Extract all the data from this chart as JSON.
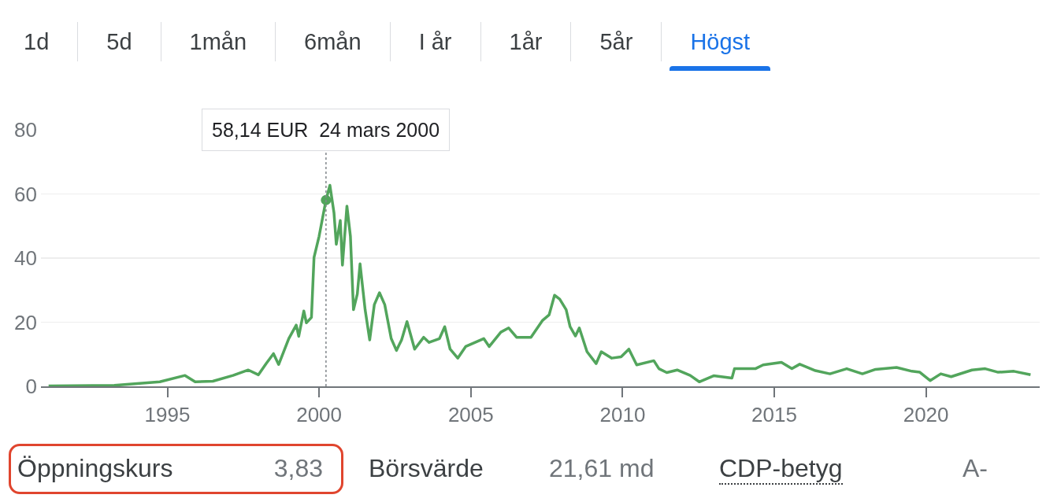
{
  "chart_data": {
    "type": "line",
    "x": [
      "1991-02",
      "1993-04",
      "1994-10",
      "1995-08",
      "1995-12",
      "1996-07",
      "1997-03",
      "1997-09",
      "1998-01",
      "1998-04",
      "1998-07",
      "1998-09",
      "1999-01",
      "1999-04",
      "1999-05",
      "1999-07",
      "1999-08",
      "1999-10",
      "1999-11",
      "2000-01",
      "2000-03-24",
      "2000-05-10",
      "2000-06-28",
      "2000-07-26",
      "2000-09-12",
      "2000-10-08",
      "2000-12-01",
      "2001-01-12",
      "2001-02-18",
      "2001-04-05",
      "2001-05-08",
      "2001-07-08",
      "2001-09-01",
      "2001-10-27",
      "2001-12-28",
      "2002-03-01",
      "2002-05-18",
      "2002-07-20",
      "2002-09-20",
      "2002-11-24",
      "2003-02-24",
      "2003-06-13",
      "2003-08-17",
      "2003-12-20",
      "2004-02-21",
      "2004-04-26",
      "2004-07-27",
      "2004-10-30",
      "2005-06-05",
      "2005-08-10",
      "2005-12-28",
      "2006-04-01",
      "2006-07-05",
      "2006-12-25",
      "2007-05-15",
      "2007-08-01",
      "2007-10-05",
      "2007-12-06",
      "2008-02-22",
      "2008-04-09",
      "2008-06-13",
      "2008-07-29",
      "2008-10-30",
      "2009-02-17",
      "2009-04-20",
      "2009-08-24",
      "2009-12-14",
      "2010-03-18",
      "2010-06-20",
      "2011-01-12",
      "2011-03-15",
      "2011-06-17",
      "2011-10-20",
      "2012-03-25",
      "2012-07-12",
      "2013-01-01",
      "2013-08-10",
      "2013-09-09",
      "2014-05-18",
      "2014-08-20",
      "2015-03-28",
      "2015-08-01",
      "2015-11-03",
      "2016-05-10",
      "2016-11-01",
      "2017-05-22",
      "2017-11-27",
      "2018-05-04",
      "2019-01-12",
      "2019-07-16",
      "2019-10-19",
      "2020-02-20",
      "2020-06-27",
      "2020-10-30",
      "2021-07-08",
      "2021-12-14",
      "2022-05-19",
      "2022-11-24",
      "2023-06-13"
    ],
    "series": [
      {
        "color": "#52a55c",
        "values": [
          0.1,
          0.3,
          1.4,
          3.4,
          1.4,
          1.6,
          3.4,
          5.1,
          3.6,
          7.0,
          10.2,
          6.8,
          14.9,
          19.1,
          15.6,
          23.5,
          19.8,
          21.5,
          40.2,
          46.8,
          58.1,
          62.7,
          54.2,
          44.3,
          51.7,
          37.8,
          56.2,
          46.8,
          23.9,
          28.8,
          38.2,
          23.9,
          14.5,
          25.5,
          29.2,
          25.5,
          14.9,
          11.2,
          14.5,
          20.2,
          11.6,
          15.3,
          13.7,
          14.9,
          18.6,
          11.6,
          8.8,
          12.4,
          14.9,
          12.4,
          16.9,
          18.2,
          15.3,
          15.3,
          20.6,
          22.3,
          28.4,
          27.2,
          23.9,
          18.6,
          15.7,
          18.2,
          10.8,
          7.1,
          10.8,
          8.8,
          9.2,
          11.6,
          6.7,
          8.0,
          5.5,
          4.3,
          5.1,
          3.4,
          1.4,
          3.3,
          2.6,
          5.5,
          5.5,
          6.7,
          7.5,
          5.5,
          6.9,
          4.9,
          3.9,
          5.5,
          3.9,
          5.3,
          5.9,
          4.7,
          4.4,
          1.8,
          3.9,
          3.0,
          5.1,
          5.5,
          4.4,
          4.7,
          3.6
        ]
      },
      {
        "type": "scatter",
        "color": "#52a55c",
        "marker": "circle",
        "x": [
          "2000-03-24"
        ],
        "values": [
          58.1
        ]
      }
    ],
    "xlim": [
      "1990-11-01",
      "2023-10-01"
    ],
    "xticks": [
      {
        "value": "1995-01-01",
        "label": "1995"
      },
      {
        "value": "2000-01-01",
        "label": "2000"
      },
      {
        "value": "2005-01-01",
        "label": "2005"
      },
      {
        "value": "2010-01-01",
        "label": "2010"
      },
      {
        "value": "2015-01-01",
        "label": "2015"
      },
      {
        "value": "2020-01-01",
        "label": "2020"
      }
    ],
    "ylim": [
      0,
      80
    ],
    "yticks": [
      0,
      20,
      40,
      60,
      80
    ],
    "grid": "y",
    "line_style": "solid",
    "ref_lines": [
      {
        "axis": "x",
        "value": "2000-03-24",
        "color": "#80868b",
        "line_style": "dotted"
      }
    ],
    "annotations": [
      "1d",
      "5d",
      "1mån",
      "6mån",
      "I år",
      "1år",
      "5år",
      "Högst",
      "58,14 EUR  24 mars 2000",
      "Öppningskurs",
      "3,83",
      "Börsvärde",
      "21,61 md",
      "CDP-betyg",
      "A-"
    ]
  }
}
